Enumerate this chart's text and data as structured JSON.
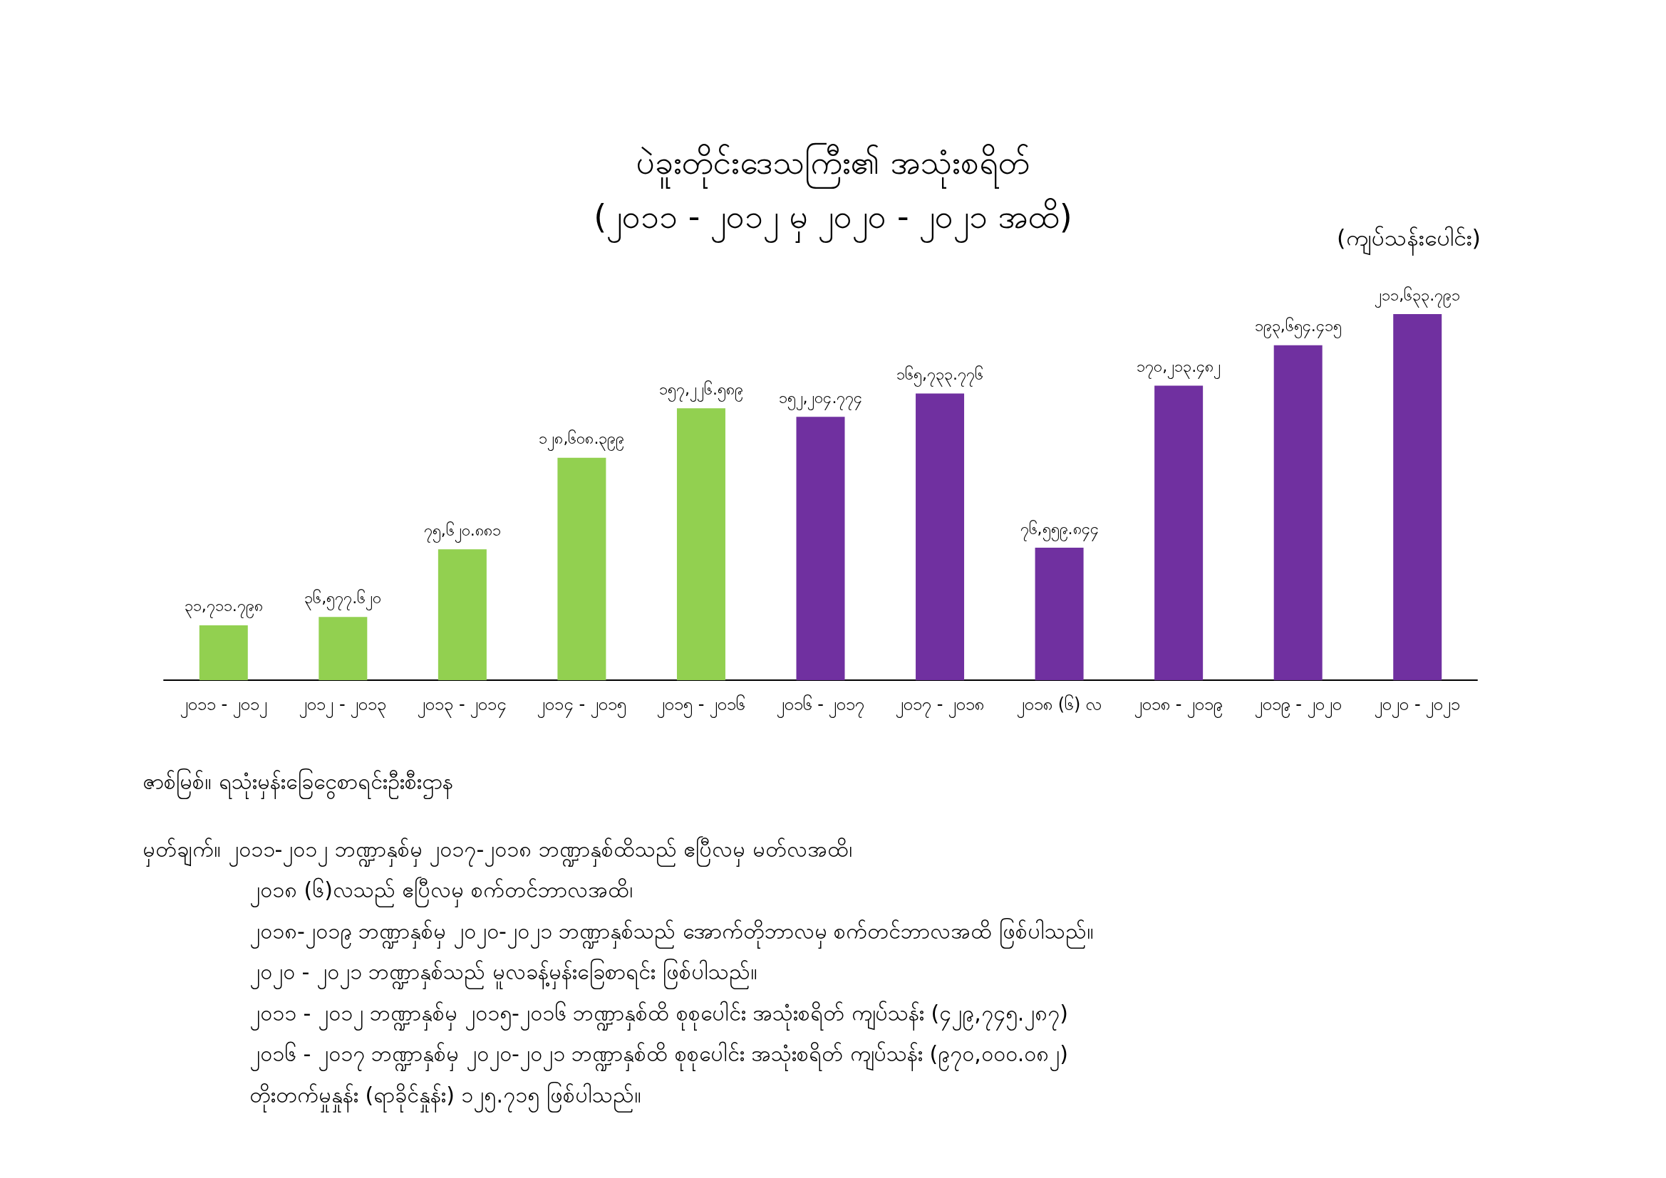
{
  "chart_data": {
    "type": "bar",
    "title": "ပဲခူးတိုင်းဒေသကြီး၏ အသုံးစရိတ်",
    "subtitle": "(၂၀၁၁ - ၂၀၁၂ မှ ၂၀၂၀ - ၂၀၂၁ အထိ)",
    "ylabel": "(ကျပ်သန်းပေါင်း)",
    "categories": [
      "၂၀၁၁ - ၂၀၁၂",
      "၂၀၁၂ - ၂၀၁၃",
      "၂၀၁၃ - ၂၀၁၄",
      "၂၀၁၄ - ၂၀၁၅",
      "၂၀၁၅ - ၂၀၁၆",
      "၂၀၁၆ - ၂၀၁၇",
      "၂၀၁၇ - ၂၀၁၈",
      "၂၀၁၈ (၆) လ",
      "၂၀၁၈ - ၂၀၁၉",
      "၂၀၁၉ - ၂၀၂၀",
      "၂၀၂၀ - ၂၀၂၁"
    ],
    "values": [
      31711.798,
      36577.62,
      75620.881,
      128608.399,
      157226.589,
      152204.774,
      165733.776,
      76559.844,
      170213.482,
      193654.415,
      211633.791
    ],
    "value_labels": [
      "၃၁,၇၁၁.၇၉၈",
      "၃၆,၅၇၇.၆၂၀",
      "၇၅,၆၂၀.၈၈၁",
      "၁၂၈,၆၀၈.၃၉၉",
      "၁၅၇,၂၂၆.၅၈၉",
      "၁၅၂,၂၀၄.၇၇၄",
      "၁၆၅,၇၃၃.၇၇၆",
      "၇၆,၅၅၉.၈၄၄",
      "၁၇၀,၂၁၃.၄၈၂",
      "၁၉၃,၆၅၄.၄၁၅",
      "၂၁၁,၆၃၃.၇၉၁"
    ],
    "colors": [
      "#92d050",
      "#92d050",
      "#92d050",
      "#92d050",
      "#92d050",
      "#7030a0",
      "#7030a0",
      "#7030a0",
      "#7030a0",
      "#7030a0",
      "#7030a0"
    ],
    "annotations": [
      "ဇာစ်မြစ်။ ရသုံးမှန်းခြေငွေစာရင်းဦးစီးဌာန",
      "မှတ်ချက်။ ၂၀၁၁-၂၀၁၂ ဘဏ္ဍာနှစ်မှ ၂၀၁၇-၂၀၁၈ ဘဏ္ဍာနှစ်ထိသည် ဧပြီလမှ မတ်လအထိ၊",
      "၂၀၁၈ (၆)လသည် ဧပြီလမှ စက်တင်ဘာလအထိ၊",
      "၂၀၁၈-၂၀၁၉ ဘဏ္ဍာနှစ်မှ ၂၀၂၀-၂၀၂၁ ဘဏ္ဍာနှစ်သည် အောက်တိုဘာလမှ စက်တင်ဘာလအထိ ဖြစ်ပါသည်။",
      "၂၀၂၀ - ၂၀၂၁ ဘဏ္ဍာနှစ်သည် မူလခန့်မှန်းခြေစာရင်း ဖြစ်ပါသည်။",
      "၂၀၁၁ - ၂၀၁၂ ဘဏ္ဍာနှစ်မှ ၂၀၁၅-၂၀၁၆ ဘဏ္ဍာနှစ်ထိ စုစုပေါင်း အသုံးစရိတ် ကျပ်သန်း (၄၂၉,၇၄၅.၂၈၇)",
      "၂၀၁၆ - ၂၀၁၇ ဘဏ္ဍာနှစ်မှ ၂၀၂၀-၂၀၂၁ ဘဏ္ဍာနှစ်ထိ စုစုပေါင်း အသုံးစရိတ် ကျပ်သန်း (၉၇၀,၀၀၀.၀၈၂)",
      "တိုးတက်မှုနှုန်း (ရာခိုင်နှုန်း) ၁၂၅.၇၁၅ ဖြစ်ပါသည်။"
    ]
  }
}
